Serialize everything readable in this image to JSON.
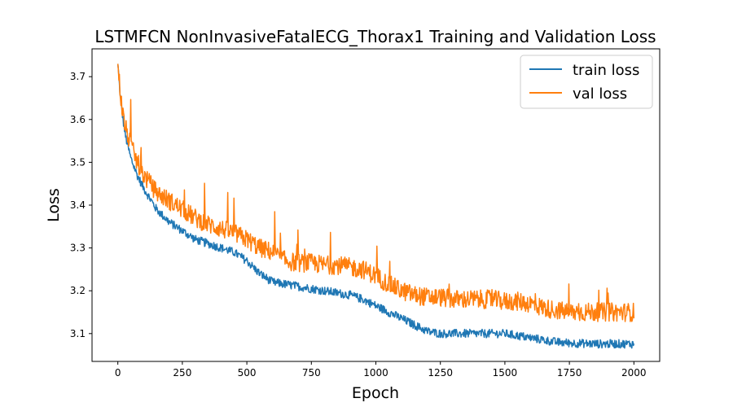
{
  "chart_data": {
    "type": "line",
    "title": "LSTMFCN NonInvasiveFatalECG_Thorax1 Training and Validation Loss",
    "xlabel": "Epoch",
    "ylabel": "Loss",
    "xlim": [
      -100,
      2100
    ],
    "ylim": [
      3.035,
      3.765
    ],
    "xticks": [
      0,
      250,
      500,
      750,
      1000,
      1250,
      1500,
      1750,
      2000
    ],
    "yticks": [
      3.1,
      3.2,
      3.3,
      3.4,
      3.5,
      3.6,
      3.7
    ],
    "grid": false,
    "legend_position": "top-right",
    "series": [
      {
        "name": "train loss",
        "color": "#1f77b4",
        "x": [
          0,
          10,
          20,
          30,
          50,
          75,
          100,
          150,
          200,
          250,
          300,
          350,
          400,
          450,
          500,
          550,
          600,
          650,
          700,
          750,
          800,
          850,
          900,
          950,
          1000,
          1050,
          1100,
          1150,
          1200,
          1250,
          1300,
          1350,
          1400,
          1450,
          1500,
          1550,
          1600,
          1650,
          1700,
          1750,
          1800,
          1850,
          1900,
          1950,
          2000
        ],
        "values": [
          3.73,
          3.65,
          3.6,
          3.56,
          3.51,
          3.47,
          3.44,
          3.39,
          3.36,
          3.34,
          3.32,
          3.31,
          3.3,
          3.29,
          3.27,
          3.24,
          3.22,
          3.215,
          3.21,
          3.205,
          3.2,
          3.195,
          3.19,
          3.18,
          3.165,
          3.15,
          3.135,
          3.12,
          3.105,
          3.1,
          3.1,
          3.1,
          3.1,
          3.1,
          3.1,
          3.095,
          3.09,
          3.085,
          3.08,
          3.078,
          3.077,
          3.076,
          3.076,
          3.076,
          3.076
        ]
      },
      {
        "name": "val loss",
        "color": "#ff7f0e",
        "x": [
          0,
          10,
          20,
          30,
          50,
          75,
          100,
          150,
          200,
          250,
          300,
          350,
          400,
          450,
          500,
          550,
          600,
          650,
          700,
          750,
          800,
          850,
          900,
          950,
          1000,
          1050,
          1100,
          1150,
          1200,
          1250,
          1300,
          1350,
          1400,
          1450,
          1500,
          1550,
          1600,
          1650,
          1700,
          1750,
          1800,
          1850,
          1900,
          1950,
          2000
        ],
        "values": [
          3.73,
          3.66,
          3.61,
          3.58,
          3.54,
          3.5,
          3.47,
          3.43,
          3.41,
          3.39,
          3.37,
          3.355,
          3.345,
          3.335,
          3.32,
          3.3,
          3.29,
          3.27,
          3.265,
          3.265,
          3.26,
          3.26,
          3.255,
          3.25,
          3.235,
          3.215,
          3.2,
          3.19,
          3.185,
          3.185,
          3.18,
          3.18,
          3.18,
          3.18,
          3.175,
          3.175,
          3.17,
          3.16,
          3.155,
          3.15,
          3.15,
          3.15,
          3.15,
          3.15,
          3.15
        ]
      }
    ]
  }
}
